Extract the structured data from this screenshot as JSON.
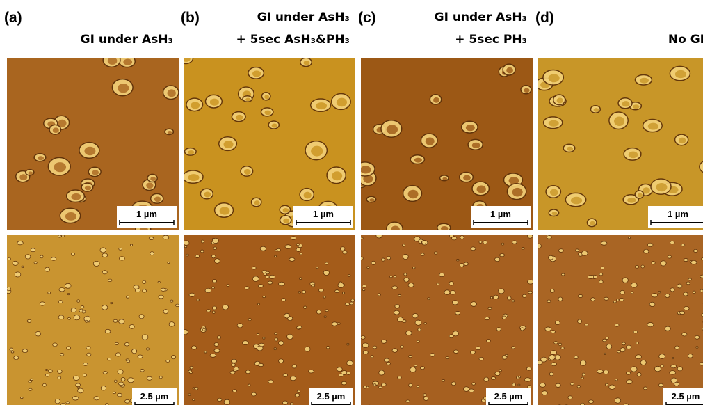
{
  "panels": [
    {
      "label": "(a)",
      "title": [
        "GI under AsH₃"
      ],
      "scale_bars": [
        "1 µm",
        "2.5 µm"
      ]
    },
    {
      "label": "(b)",
      "title": [
        "GI under AsH₃",
        "+ 5sec AsH₃&PH₃"
      ],
      "scale_bars": [
        "1 µm",
        "2.5 µm"
      ]
    },
    {
      "label": "(c)",
      "title": [
        "GI under AsH₃",
        "+ 5sec PH₃"
      ],
      "scale_bars": [
        "1 µm",
        "2.5 µm"
      ]
    },
    {
      "label": "(d)",
      "title": [
        "No GI"
      ],
      "scale_bars": [
        "1 µm",
        "2.5 µm"
      ]
    }
  ]
}
